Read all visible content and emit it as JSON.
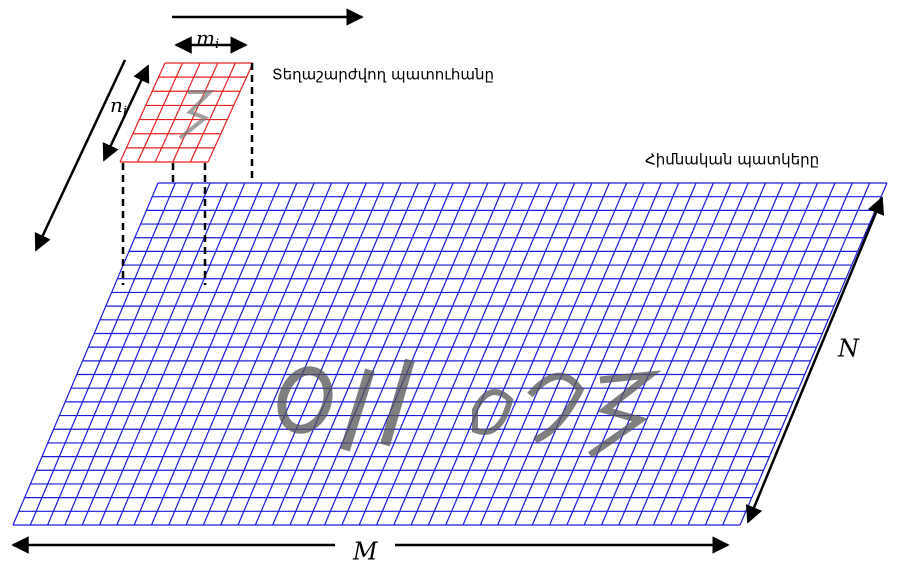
{
  "window": {
    "width_label": {
      "base": "m",
      "sub": "i"
    },
    "height_label": {
      "base": "n",
      "sub": "i"
    },
    "caption": "Տեղաշարժվող պատուհանը"
  },
  "image": {
    "caption": "Հիմնական պատկերը",
    "height_label": "N",
    "width_label": "M"
  }
}
